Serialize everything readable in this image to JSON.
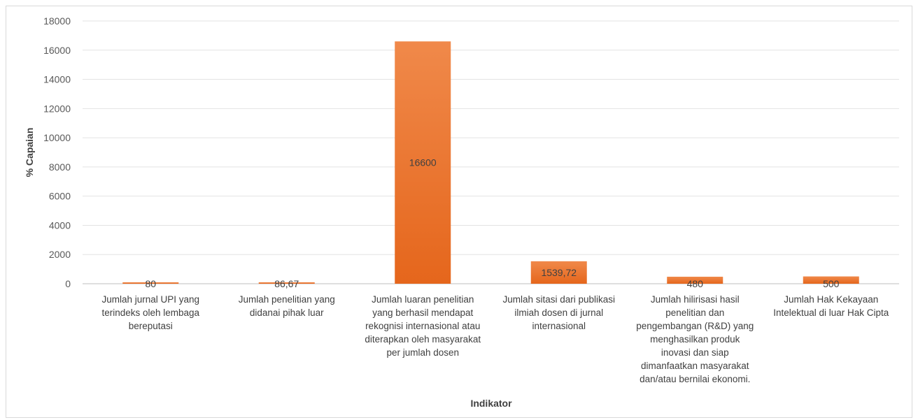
{
  "chart_data": {
    "type": "bar",
    "title": "",
    "xlabel": "Indikator",
    "ylabel": "% Capaian",
    "ylim": [
      0,
      18000
    ],
    "yticks": [
      0,
      2000,
      4000,
      6000,
      8000,
      10000,
      12000,
      14000,
      16000,
      18000
    ],
    "grid": true,
    "legend": "none",
    "bar_color": "#ed7d31",
    "categories": [
      [
        "Jumlah jurnal UPI yang",
        "terindeks oleh lembaga",
        "bereputasi"
      ],
      [
        "Jumlah penelitian yang",
        "didanai pihak luar"
      ],
      [
        "Jumlah luaran penelitian",
        "yang berhasil mendapat",
        "rekognisi internasional atau",
        "diterapkan oleh masyarakat",
        "per jumlah dosen"
      ],
      [
        "Jumlah sitasi dari publikasi",
        "ilmiah dosen di jurnal",
        "internasional"
      ],
      [
        "Jumlah hilirisasi hasil",
        "penelitian dan",
        "pengembangan (R&D) yang",
        "menghasilkan produk",
        "inovasi dan siap",
        "dimanfaatkan masyarakat",
        "dan/atau bernilai ekonomi."
      ],
      [
        "Jumlah Hak Kekayaan",
        "Intelektual di luar Hak Cipta"
      ]
    ],
    "values": [
      80,
      86.67,
      16600,
      1539.72,
      480,
      500
    ],
    "data_labels": [
      "80",
      "86,67",
      "16600",
      "1539,72",
      "480",
      "500"
    ]
  }
}
